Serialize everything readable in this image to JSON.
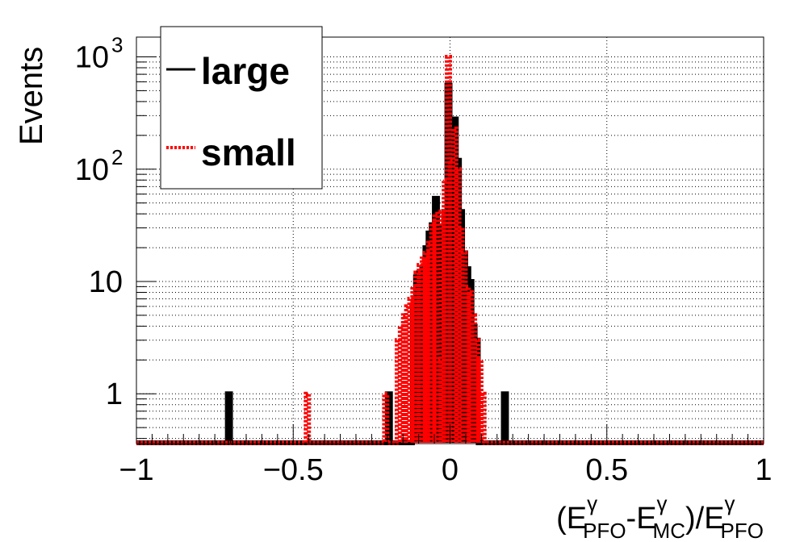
{
  "chart_data": {
    "type": "histogram",
    "xlabel": {
      "open": "(E",
      "sup1": "γ",
      "sub1": "PFO",
      "mid": "-E",
      "sup2": "γ",
      "sub2": "MC",
      "close": ")/E",
      "sup3": "γ",
      "sub3": "PFO"
    },
    "ylabel": "Events",
    "xlim": [
      -1,
      1
    ],
    "ylim": [
      0.36,
      1500
    ],
    "y_scale": "log",
    "grid": true,
    "x_ticks": [
      {
        "value": -1,
        "label": "−1"
      },
      {
        "value": -0.5,
        "label": "−0.5"
      },
      {
        "value": 0,
        "label": "0"
      },
      {
        "value": 0.5,
        "label": "0.5"
      },
      {
        "value": 1,
        "label": "1"
      }
    ],
    "y_ticks": [
      {
        "value": 1,
        "base": "1",
        "exp": ""
      },
      {
        "value": 10,
        "base": "10",
        "exp": ""
      },
      {
        "value": 100,
        "base": "10",
        "exp": "2"
      },
      {
        "value": 1000,
        "base": "10",
        "exp": "3"
      }
    ],
    "legend_position": "top-left",
    "series": [
      {
        "name": "large",
        "color": "#000000",
        "style": "solid",
        "bins": [
          {
            "x": -0.705,
            "y": 1
          },
          {
            "x": -0.195,
            "y": 1
          },
          {
            "x": -0.115,
            "y": 6
          },
          {
            "x": -0.105,
            "y": 11
          },
          {
            "x": -0.095,
            "y": 12
          },
          {
            "x": -0.085,
            "y": 13
          },
          {
            "x": -0.075,
            "y": 20
          },
          {
            "x": -0.065,
            "y": 27
          },
          {
            "x": -0.055,
            "y": 32
          },
          {
            "x": -0.045,
            "y": 55
          },
          {
            "x": -0.035,
            "y": 9
          },
          {
            "x": -0.025,
            "y": 30
          },
          {
            "x": -0.015,
            "y": 42
          },
          {
            "x": -0.005,
            "y": 560
          },
          {
            "x": 0.005,
            "y": 40
          },
          {
            "x": 0.015,
            "y": 280
          },
          {
            "x": 0.025,
            "y": 120
          },
          {
            "x": 0.035,
            "y": 42
          },
          {
            "x": 0.045,
            "y": 18
          },
          {
            "x": 0.055,
            "y": 13
          },
          {
            "x": 0.065,
            "y": 10
          },
          {
            "x": 0.075,
            "y": 4
          },
          {
            "x": 0.085,
            "y": 3
          },
          {
            "x": 0.175,
            "y": 1
          }
        ]
      },
      {
        "name": "small",
        "color": "#ff0000",
        "style": "dotted",
        "bins": [
          {
            "x": -0.455,
            "y": 1
          },
          {
            "x": -0.205,
            "y": 1
          },
          {
            "x": -0.165,
            "y": 3
          },
          {
            "x": -0.155,
            "y": 4
          },
          {
            "x": -0.145,
            "y": 5
          },
          {
            "x": -0.135,
            "y": 6
          },
          {
            "x": -0.125,
            "y": 7
          },
          {
            "x": -0.115,
            "y": 9
          },
          {
            "x": -0.105,
            "y": 12
          },
          {
            "x": -0.095,
            "y": 14
          },
          {
            "x": -0.085,
            "y": 16
          },
          {
            "x": -0.075,
            "y": 18
          },
          {
            "x": -0.065,
            "y": 22
          },
          {
            "x": -0.055,
            "y": 33
          },
          {
            "x": -0.045,
            "y": 40
          },
          {
            "x": -0.035,
            "y": 2
          },
          {
            "x": -0.025,
            "y": 42
          },
          {
            "x": -0.015,
            "y": 80
          },
          {
            "x": -0.005,
            "y": 1000
          },
          {
            "x": 0.005,
            "y": 120
          },
          {
            "x": 0.015,
            "y": 230
          },
          {
            "x": 0.025,
            "y": 100
          },
          {
            "x": 0.035,
            "y": 30
          },
          {
            "x": 0.045,
            "y": 18
          },
          {
            "x": 0.055,
            "y": 9
          },
          {
            "x": 0.065,
            "y": 8
          },
          {
            "x": 0.075,
            "y": 5
          },
          {
            "x": 0.085,
            "y": 3
          },
          {
            "x": 0.095,
            "y": 2
          },
          {
            "x": 0.105,
            "y": 1
          }
        ]
      }
    ]
  }
}
